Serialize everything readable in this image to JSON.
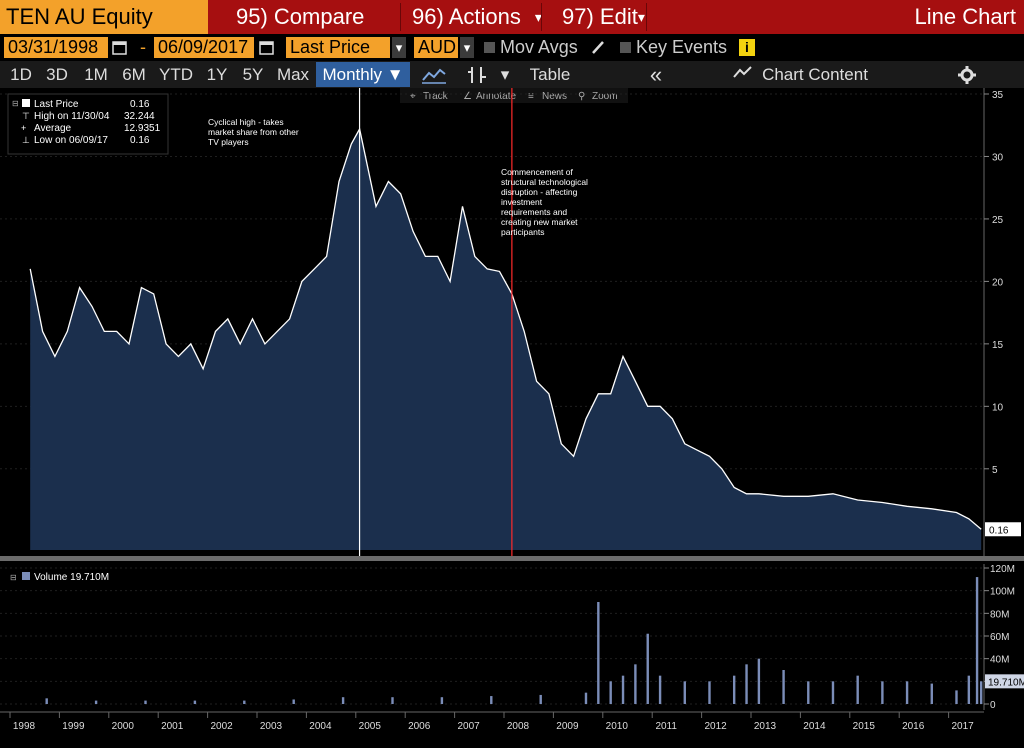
{
  "toolbar": {
    "ticker": "TEN AU Equity",
    "compare": "95) Compare",
    "actions": "96) Actions",
    "edit": "97) Edit",
    "chart_type": "Line Chart"
  },
  "controls": {
    "start_date": "03/31/1998",
    "dash": "-",
    "end_date": "06/09/2017",
    "field": "Last Price",
    "currency": "AUD",
    "mov_avgs": "Mov Avgs",
    "key_events": "Key Events",
    "info": "i"
  },
  "periods": {
    "items": [
      "1D",
      "3D",
      "1M",
      "6M",
      "YTD",
      "1Y",
      "5Y",
      "Max"
    ],
    "frequency": "Monthly ▼",
    "table": "Table",
    "chart_content": "Chart Content"
  },
  "hover_tools": {
    "track": "Track",
    "annotate": "Annotate",
    "news": "News",
    "zoom": "Zoom"
  },
  "legend": {
    "rows": [
      {
        "label": "Last Price",
        "value": "0.16"
      },
      {
        "label": "High on 11/30/04",
        "value": "32.244"
      },
      {
        "label": "Average",
        "value": "12.9351"
      },
      {
        "label": "Low on 06/09/17",
        "value": "0.16"
      }
    ],
    "volume_label": "Volume 19.710M"
  },
  "annotations": {
    "note1": [
      "Cyclical high - takes",
      "market share from other",
      "TV players"
    ],
    "note2": [
      "Commencement of",
      "structural technological",
      "disruption - affecting",
      "investment",
      "requirements and",
      "creating new market",
      "participants"
    ]
  },
  "colors": {
    "toolbar_bg": "#a60f10",
    "accent_orange": "#f3a12a",
    "area_fill": "#1b2f4d",
    "line": "#ffffff",
    "volume_bar": "#7b8db8",
    "marker_white": "#ffffff",
    "marker_red": "#ff2a2a"
  },
  "chart_data": [
    {
      "type": "area",
      "series": [
        {
          "name": "Last Price"
        }
      ],
      "x": [
        "1998-03",
        "1998-06",
        "1998-09",
        "1998-12",
        "1999-03",
        "1999-06",
        "1999-09",
        "1999-12",
        "2000-03",
        "2000-06",
        "2000-09",
        "2000-12",
        "2001-03",
        "2001-06",
        "2001-09",
        "2001-12",
        "2002-03",
        "2002-06",
        "2002-09",
        "2002-12",
        "2003-03",
        "2003-06",
        "2003-09",
        "2003-12",
        "2004-03",
        "2004-06",
        "2004-09",
        "2004-11",
        "2005-03",
        "2005-06",
        "2005-09",
        "2005-12",
        "2006-03",
        "2006-06",
        "2006-09",
        "2006-12",
        "2007-03",
        "2007-06",
        "2007-09",
        "2007-12",
        "2008-03",
        "2008-06",
        "2008-09",
        "2008-12",
        "2009-03",
        "2009-06",
        "2009-09",
        "2009-12",
        "2010-03",
        "2010-06",
        "2010-09",
        "2010-12",
        "2011-03",
        "2011-06",
        "2011-09",
        "2011-12",
        "2012-03",
        "2012-06",
        "2012-09",
        "2012-12",
        "2013-06",
        "2013-12",
        "2014-06",
        "2014-12",
        "2015-06",
        "2015-12",
        "2016-06",
        "2016-12",
        "2017-03",
        "2017-06"
      ],
      "y": [
        21,
        16,
        14,
        16,
        19.5,
        18,
        16,
        16,
        15,
        19.5,
        19,
        15,
        14,
        15,
        13,
        16,
        17,
        15,
        17,
        15,
        16,
        17,
        20,
        21,
        22,
        28,
        31,
        32.2,
        26,
        28,
        27,
        24,
        22,
        22,
        20,
        26,
        22,
        21,
        20.8,
        19,
        16,
        12,
        11,
        7,
        6,
        9,
        11,
        11,
        14,
        12,
        10,
        10,
        9,
        7,
        6.5,
        6,
        5,
        3.5,
        3,
        3,
        2.8,
        2.8,
        3,
        2.5,
        2.3,
        2,
        1.8,
        1.5,
        1,
        0.16
      ],
      "ylim": [
        -1.5,
        35
      ],
      "yticks": [
        5,
        10,
        15,
        20,
        25,
        30,
        35
      ],
      "xlabels": [
        "1998",
        "1999",
        "2000",
        "2001",
        "2002",
        "2003",
        "2004",
        "2005",
        "2006",
        "2007",
        "2008",
        "2009",
        "2010",
        "2011",
        "2012",
        "2013",
        "2014",
        "2015",
        "2016",
        "2017"
      ],
      "last_value_label": "0.16"
    },
    {
      "type": "bar",
      "series": [
        {
          "name": "Volume"
        }
      ],
      "x": [
        "1998",
        "1999",
        "2000",
        "2001",
        "2002",
        "2003",
        "2004",
        "2005",
        "2006",
        "2007",
        "2008",
        "2009-06",
        "2009-09",
        "2009-12",
        "2010-03",
        "2010-06",
        "2010-09",
        "2010-12",
        "2011-06",
        "2011-12",
        "2012-06",
        "2012-09",
        "2012-12",
        "2013-06",
        "2013-12",
        "2014-06",
        "2014-12",
        "2015-06",
        "2015-12",
        "2016-06",
        "2016-12",
        "2017-03",
        "2017-05",
        "2017-06"
      ],
      "values": [
        5,
        3,
        3,
        3,
        3,
        4,
        6,
        6,
        6,
        7,
        8,
        10,
        90,
        20,
        25,
        35,
        62,
        25,
        20,
        20,
        25,
        35,
        40,
        30,
        20,
        20,
        25,
        20,
        20,
        18,
        12,
        25,
        112,
        20
      ],
      "units": "M",
      "ylim": [
        0,
        120
      ],
      "yticks_labels": [
        "0",
        "20M",
        "40M",
        "60M",
        "80M",
        "100M",
        "120M"
      ],
      "last_value_label": "19.710M"
    }
  ]
}
